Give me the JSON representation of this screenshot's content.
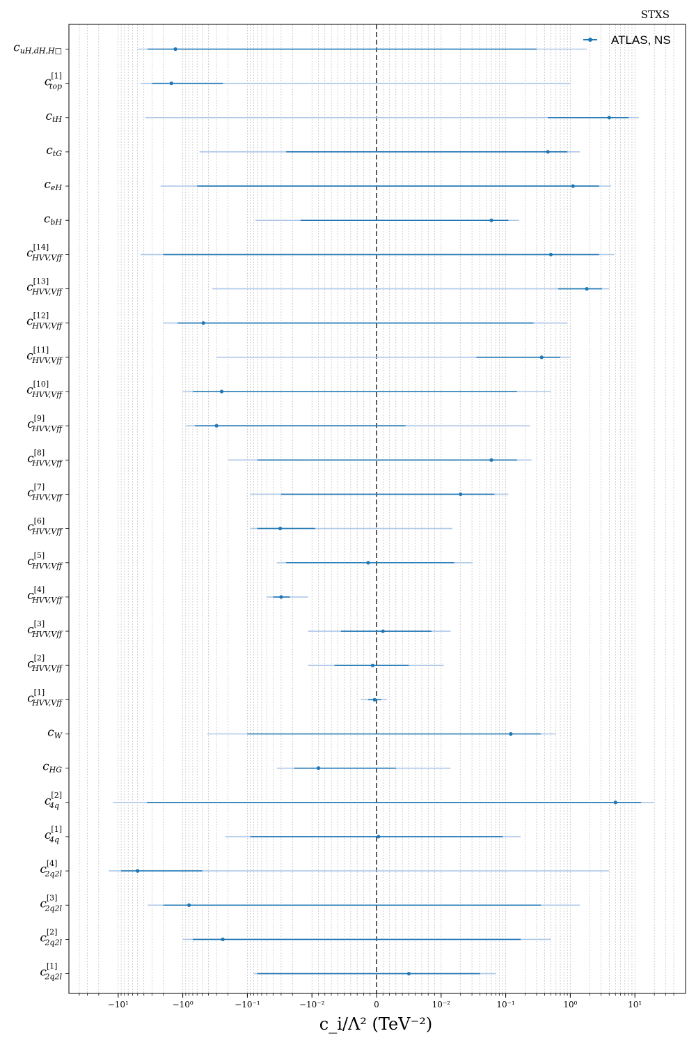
{
  "chart_data": {
    "type": "scatter",
    "title": "STXS",
    "xlabel": "c_i/Λ² (TeV⁻²)",
    "x_scale": "symlog",
    "xlim": [
      -40,
      40
    ],
    "x_tick_labels": [
      "−10¹",
      "−10⁰",
      "−10⁻¹",
      "−10⁻²",
      "0",
      "10⁻²",
      "10⁻¹",
      "10⁰",
      "10¹"
    ],
    "x_tick_values": [
      -10,
      -1,
      -0.1,
      -0.01,
      0,
      0.01,
      0.1,
      1,
      10
    ],
    "reference_line": 0,
    "grid": "vertical minor",
    "legend_position": "top-right",
    "series": [
      {
        "name": "ATLAS, NS",
        "color": "#1f77b4",
        "ci_68_color": "#1f77b4",
        "ci_95_color": "#aec7e8",
        "points": [
          {
            "label": "c_{uH,dH,H□}",
            "base": "c",
            "sub": "uH,dH,H□",
            "sup": "",
            "value": -1.3,
            "ci68": [
              -3.5,
              0.3
            ],
            "ci95": [
              -5.0,
              1.8
            ]
          },
          {
            "label": "c_{top}^{[1]}",
            "base": "c",
            "sub": "top",
            "sup": "[1]",
            "value": -1.5,
            "ci68": [
              -3.0,
              -0.24
            ],
            "ci95": [
              -4.5,
              1.0
            ]
          },
          {
            "label": "c_{tH}",
            "base": "c",
            "sub": "tH",
            "sup": "",
            "value": 4.0,
            "ci68": [
              0.45,
              8.0
            ],
            "ci95": [
              -3.8,
              11.5
            ]
          },
          {
            "label": "c_{tG}",
            "base": "c",
            "sub": "tG",
            "sup": "",
            "value": 0.45,
            "ci68": [
              -0.025,
              0.9
            ],
            "ci95": [
              -0.55,
              1.4
            ]
          },
          {
            "label": "c_{eH}",
            "base": "c",
            "sub": "eH",
            "sup": "",
            "value": 1.1,
            "ci68": [
              -0.6,
              2.8
            ],
            "ci95": [
              -2.2,
              4.3
            ]
          },
          {
            "label": "c_{bH}",
            "base": "c",
            "sub": "bH",
            "sup": "",
            "value": 0.06,
            "ci68": [
              -0.015,
              0.11
            ],
            "ci95": [
              -0.075,
              0.16
            ]
          },
          {
            "label": "c_{HVV,Vff}^{[14]}",
            "base": "c",
            "sub": "HVV,Vff",
            "sup": "[14]",
            "value": 0.5,
            "ci68": [
              -2.0,
              2.8
            ],
            "ci95": [
              -4.5,
              4.8
            ]
          },
          {
            "label": "c_{HVV,Vff}^{[13]}",
            "base": "c",
            "sub": "HVV,Vff",
            "sup": "[13]",
            "value": 1.8,
            "ci68": [
              0.65,
              3.1
            ],
            "ci95": [
              -0.35,
              4.0
            ]
          },
          {
            "label": "c_{HVV,Vff}^{[12]}",
            "base": "c",
            "sub": "HVV,Vff",
            "sup": "[12]",
            "value": -0.48,
            "ci68": [
              -1.2,
              0.27
            ],
            "ci95": [
              -2.0,
              0.9
            ]
          },
          {
            "label": "c_{HVV,Vff}^{[11]}",
            "base": "c",
            "sub": "HVV,Vff",
            "sup": "[11]",
            "value": 0.36,
            "ci68": [
              0.035,
              0.7
            ],
            "ci95": [
              -0.3,
              1.0
            ]
          },
          {
            "label": "c_{HVV,Vff}^{[10]}",
            "base": "c",
            "sub": "HVV,Vff",
            "sup": "[10]",
            "value": -0.25,
            "ci68": [
              -0.7,
              0.15
            ],
            "ci95": [
              -1.0,
              0.5
            ]
          },
          {
            "label": "c_{HVV,Vff}^{[9]}",
            "base": "c",
            "sub": "HVV,Vff",
            "sup": "[9]",
            "value": -0.3,
            "ci68": [
              -0.65,
              0.0045
            ],
            "ci95": [
              -0.9,
              0.24
            ]
          },
          {
            "label": "c_{HVV,Vff}^{[8]}",
            "base": "c",
            "sub": "HVV,Vff",
            "sup": "[8]",
            "value": 0.06,
            "ci68": [
              -0.07,
              0.15
            ],
            "ci95": [
              -0.2,
              0.25
            ]
          },
          {
            "label": "c_{HVV,Vff}^{[7]}",
            "base": "c",
            "sub": "HVV,Vff",
            "sup": "[7]",
            "value": 0.02,
            "ci68": [
              -0.03,
              0.067
            ],
            "ci95": [
              -0.09,
              0.11
            ]
          },
          {
            "label": "c_{HVV,Vff}^{[6]}",
            "base": "c",
            "sub": "HVV,Vff",
            "sup": "[6]",
            "value": -0.031,
            "ci68": [
              -0.07,
              -0.0095
            ],
            "ci95": [
              -0.09,
              0.015
            ]
          },
          {
            "label": "c_{HVV,Vff}^{[5]}",
            "base": "c",
            "sub": "HVV,Vff",
            "sup": "[5]",
            "value": -0.0013,
            "ci68": [
              -0.025,
              0.016
            ],
            "ci95": [
              -0.035,
              0.031
            ]
          },
          {
            "label": "c_{HVV,Vff}^{[4]}",
            "base": "c",
            "sub": "HVV,Vff",
            "sup": "[4]",
            "value": -0.03,
            "ci68": [
              -0.04,
              -0.022
            ],
            "ci95": [
              -0.05,
              -0.0115
            ]
          },
          {
            "label": "c_{HVV,Vff}^{[3]}",
            "base": "c",
            "sub": "HVV,Vff",
            "sup": "[3]",
            "value": 0.001,
            "ci68": [
              -0.0055,
              0.0085
            ],
            "ci95": [
              -0.0115,
              0.014
            ]
          },
          {
            "label": "c_{HVV,Vff}^{[2]}",
            "base": "c",
            "sub": "HVV,Vff",
            "sup": "[2]",
            "value": -0.0006,
            "ci68": [
              -0.0065,
              0.005
            ],
            "ci95": [
              -0.0115,
              0.011
            ]
          },
          {
            "label": "c_{HVV,Vff}^{[1]}",
            "base": "c",
            "sub": "HVV,Vff",
            "sup": "[1]",
            "value": -0.0003,
            "ci68": [
              -0.0013,
              0.0007
            ],
            "ci95": [
              -0.0024,
              0.0016
            ]
          },
          {
            "label": "c_{W}",
            "base": "c",
            "sub": "W",
            "sup": "",
            "value": 0.12,
            "ci68": [
              -0.1,
              0.35
            ],
            "ci95": [
              -0.42,
              0.6
            ]
          },
          {
            "label": "c_{HG}",
            "base": "c",
            "sub": "HG",
            "sup": "",
            "value": -0.009,
            "ci68": [
              -0.019,
              0.003
            ],
            "ci95": [
              -0.035,
              0.014
            ]
          },
          {
            "label": "c_{4q}^{[2]}",
            "base": "c",
            "sub": "4q",
            "sup": "[2]",
            "value": 5.0,
            "ci68": [
              -3.6,
              12.5
            ],
            "ci95": [
              -12.0,
              20.0
            ]
          },
          {
            "label": "c_{4q}^{[1]}",
            "base": "c",
            "sub": "4q",
            "sup": "[1]",
            "value": 0.0003,
            "ci68": [
              -0.09,
              0.09
            ],
            "ci95": [
              -0.22,
              0.17
            ]
          },
          {
            "label": "c_{2q2l}^{[4]}",
            "base": "c",
            "sub": "2q2l",
            "sup": "[4]",
            "value": -5.0,
            "ci68": [
              -9.0,
              -0.5
            ],
            "ci95": [
              -14.0,
              4.0
            ]
          },
          {
            "label": "c_{2q2l}^{[3]}",
            "base": "c",
            "sub": "2q2l",
            "sup": "[3]",
            "value": -0.8,
            "ci68": [
              -2.0,
              0.35
            ],
            "ci95": [
              -3.5,
              1.4
            ]
          },
          {
            "label": "c_{2q2l}^{[2]}",
            "base": "c",
            "sub": "2q2l",
            "sup": "[2]",
            "value": -0.24,
            "ci68": [
              -0.7,
              0.17
            ],
            "ci95": [
              -1.0,
              0.5
            ]
          },
          {
            "label": "c_{2q2l}^{[1]}",
            "base": "c",
            "sub": "2q2l",
            "sup": "[1]",
            "value": 0.005,
            "ci68": [
              -0.07,
              0.04
            ],
            "ci95": [
              -0.08,
              0.07
            ]
          }
        ]
      }
    ]
  }
}
